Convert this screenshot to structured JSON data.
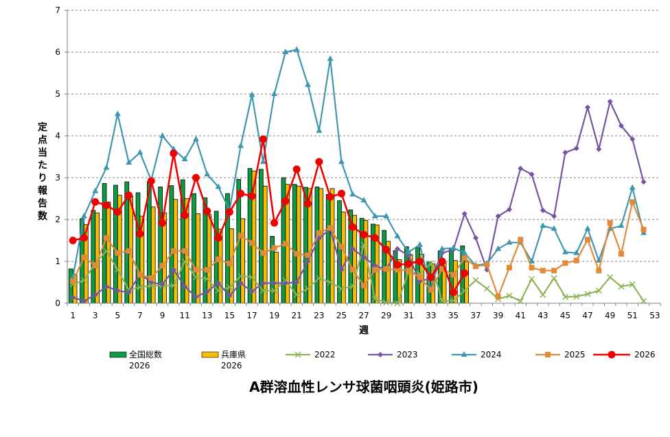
{
  "chart_data": {
    "type": "bar",
    "title": "A群溶血性レンサ球菌咽頭炎(姫路市)",
    "xlabel": "週",
    "ylabel": "定点当たり報告数",
    "ylim": [
      0,
      7
    ],
    "y_ticks": [
      "0",
      "1",
      "2",
      "3",
      "4",
      "5",
      "6",
      "7"
    ],
    "x_ticks": [
      "1",
      "3",
      "5",
      "7",
      "9",
      "11",
      "13",
      "15",
      "17",
      "19",
      "21",
      "23",
      "25",
      "27",
      "29",
      "31",
      "33",
      "35",
      "37",
      "39",
      "41",
      "43",
      "45",
      "47",
      "49",
      "51",
      "53"
    ],
    "x_range": [
      0.5,
      53.5
    ],
    "grid": "horizontal dashed",
    "legend_position": "bottom",
    "colors": {
      "national": "#0E9B45",
      "hyogo": "#F7BE00",
      "s2022": "#8DB356",
      "s2023": "#7554A0",
      "s2024": "#3E96B0",
      "s2025": "#E08A3A",
      "s2026": "#F00000"
    },
    "bar_series": [
      {
        "key": "national",
        "name": "全国総数",
        "name2": "2026",
        "values": [
          0.82,
          2.02,
          2.22,
          2.86,
          2.82,
          2.9,
          2.64,
          2.9,
          2.78,
          2.81,
          2.95,
          2.62,
          2.52,
          2.2,
          2.62,
          2.96,
          3.22,
          3.2,
          1.6,
          3.0,
          2.84,
          2.77,
          2.78,
          2.6,
          2.45,
          2.23,
          2.03,
          1.89,
          1.74,
          1.26,
          1.35,
          1.33,
          0.98,
          1.25,
          1.32,
          1.37
        ]
      },
      {
        "key": "hyogo",
        "name": "兵庫県",
        "name2": "2026",
        "values": [
          0.7,
          1.88,
          2.16,
          2.42,
          2.58,
          2.56,
          2.08,
          2.3,
          2.16,
          2.48,
          2.5,
          2.14,
          2.12,
          1.77,
          1.78,
          2.02,
          3.16,
          2.8,
          1.22,
          2.84,
          2.8,
          2.74,
          2.74,
          2.74,
          2.18,
          2.1,
          1.98,
          1.87,
          1.48,
          1.04,
          1.16,
          1.17,
          0.94,
          0.97,
          1.02,
          1.0
        ]
      }
    ],
    "line_series": [
      {
        "key": "s2022",
        "name": "2022",
        "marker": "x",
        "values": [
          0.45,
          0.55,
          0.95,
          1.25,
          0.8,
          0.32,
          0.38,
          0.42,
          0.42,
          0.42,
          1.0,
          0.62,
          0.58,
          0.3,
          0.38,
          0.65,
          0.62,
          0.3,
          0.3,
          0.55,
          0.2,
          0.35,
          0.6,
          0.5,
          0.35,
          0.4,
          1.4,
          0.1,
          0.02,
          0.0,
          0.75,
          0.7,
          0.95,
          0.05,
          0.06,
          0.3,
          0.55,
          0.35,
          0.1,
          0.18,
          0.05,
          0.58,
          0.2,
          0.6,
          0.15,
          0.16,
          0.22,
          0.3,
          0.62,
          0.4,
          0.45,
          0.05
        ]
      },
      {
        "key": "s2023",
        "name": "2023",
        "marker": "diamond",
        "values": [
          0.14,
          0.05,
          0.2,
          0.4,
          0.3,
          0.26,
          0.7,
          0.5,
          0.45,
          0.8,
          0.4,
          0.15,
          0.28,
          0.48,
          0.18,
          0.48,
          0.28,
          0.48,
          0.48,
          0.48,
          0.5,
          1.0,
          1.55,
          1.78,
          0.8,
          1.3,
          1.1,
          0.9,
          0.8,
          1.3,
          1.14,
          0.52,
          0.6,
          1.2,
          1.28,
          2.14,
          1.56,
          0.8,
          2.08,
          2.24,
          3.22,
          3.08,
          2.22,
          2.08,
          3.6,
          3.7,
          4.68,
          3.68,
          4.82,
          4.24,
          3.92,
          2.9
        ]
      },
      {
        "key": "s2024",
        "name": "2024",
        "marker": "triangle",
        "values": [
          0.62,
          2.08,
          2.68,
          3.24,
          4.52,
          3.36,
          3.6,
          2.94,
          4.0,
          3.68,
          3.44,
          3.92,
          3.08,
          2.78,
          2.22,
          3.76,
          4.98,
          3.38,
          5.0,
          6.0,
          6.06,
          5.22,
          4.12,
          5.84,
          3.38,
          2.6,
          2.46,
          2.08,
          2.08,
          1.6,
          1.22,
          1.4,
          0.32,
          1.3,
          1.32,
          1.2,
          0.9,
          0.95,
          1.3,
          1.45,
          1.45,
          1.0,
          1.85,
          1.78,
          1.22,
          1.2,
          1.78,
          1.02,
          1.78,
          1.85,
          2.76,
          1.68
        ]
      },
      {
        "key": "s2025",
        "name": "2025",
        "marker": "square",
        "values": [
          0.52,
          1.1,
          0.9,
          1.56,
          1.2,
          1.25,
          0.68,
          0.6,
          0.9,
          1.25,
          1.25,
          0.8,
          0.8,
          1.05,
          0.95,
          1.62,
          1.44,
          1.2,
          1.32,
          1.42,
          1.18,
          1.15,
          1.68,
          1.8,
          1.35,
          0.8,
          0.42,
          0.8,
          0.82,
          0.8,
          0.78,
          0.62,
          0.32,
          0.82,
          0.68,
          1.08,
          0.88,
          0.92,
          0.16,
          0.85,
          1.52,
          0.85,
          0.78,
          0.78,
          0.96,
          1.02,
          1.52,
          0.78,
          1.92,
          1.18,
          2.42,
          1.76
        ]
      },
      {
        "key": "s2026",
        "name": "2026",
        "marker": "circle",
        "values": [
          1.5,
          1.56,
          2.42,
          2.34,
          2.18,
          2.58,
          1.66,
          2.92,
          1.92,
          3.58,
          2.1,
          3.0,
          2.2,
          1.56,
          2.18,
          2.62,
          2.56,
          3.92,
          1.92,
          2.44,
          3.2,
          2.38,
          3.38,
          2.54,
          2.62,
          1.82,
          1.64,
          1.56,
          1.28,
          0.92,
          0.94,
          1.0,
          0.62,
          1.0,
          0.26,
          0.72
        ]
      }
    ]
  }
}
